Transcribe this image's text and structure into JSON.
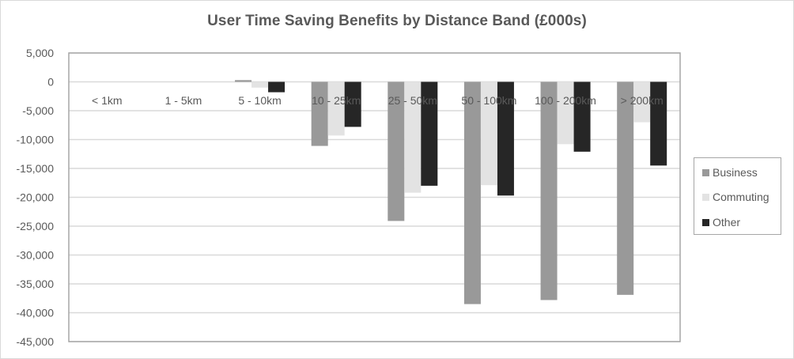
{
  "chart_data": {
    "type": "bar",
    "title": "User Time Saving Benefits by Distance Band (£000s)",
    "xlabel": "",
    "ylabel": "",
    "ylim": [
      -45000,
      5000
    ],
    "yticks": [
      5000,
      0,
      -5000,
      -10000,
      -15000,
      -20000,
      -25000,
      -30000,
      -35000,
      -40000,
      -45000
    ],
    "ytick_labels": [
      "5,000",
      "0",
      "-5,000",
      "-10,000",
      "-15,000",
      "-20,000",
      "-25,000",
      "-30,000",
      "-35,000",
      "-40,000",
      "-45,000"
    ],
    "grid": true,
    "legend_position": "right",
    "categories": [
      "< 1km",
      "1 - 5km",
      "5 - 10km",
      "10 - 25km",
      "25 - 50km",
      "50 - 100km",
      "100 - 200km",
      "> 200km"
    ],
    "series": [
      {
        "name": "Business",
        "color": "#999999",
        "values": [
          0,
          0,
          300,
          -11100,
          -24100,
          -38500,
          -37800,
          -36900
        ]
      },
      {
        "name": "Commuting",
        "color": "#e3e3e3",
        "values": [
          0,
          0,
          -1000,
          -9300,
          -19200,
          -17900,
          -10800,
          -7000
        ]
      },
      {
        "name": "Other",
        "color": "#262626",
        "values": [
          0,
          0,
          -1800,
          -7800,
          -18000,
          -19700,
          -12100,
          -14500
        ]
      }
    ]
  },
  "legend": {
    "items": [
      {
        "label": "Business",
        "color": "#999999"
      },
      {
        "label": "Commuting",
        "color": "#e3e3e3"
      },
      {
        "label": "Other",
        "color": "#262626"
      }
    ]
  }
}
